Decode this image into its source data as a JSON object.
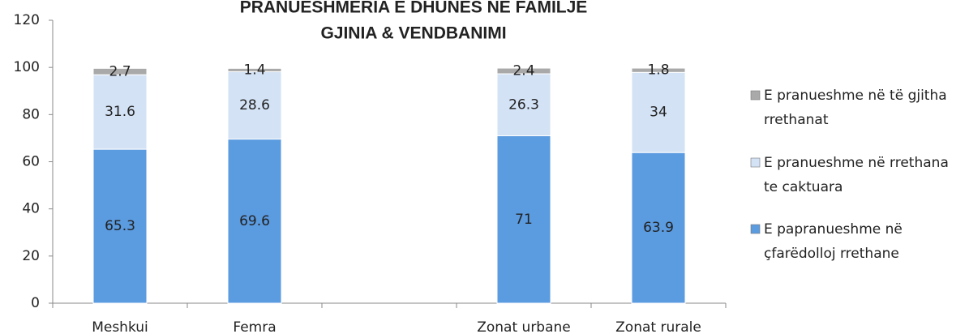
{
  "chart_data": {
    "type": "stacked_bar",
    "title": "PRANUESHMERIA E DHUNES NE FAMILJE",
    "subtitle": "GJINIA & VENDBANIMI",
    "categories": [
      "Meshkui",
      "Femra",
      null,
      "Zonat urbane",
      "Zonat rurale"
    ],
    "series": [
      {
        "name": "E papranueshme në çfarëdolloj rrethane",
        "color": "#5b9be0",
        "values": [
          65.3,
          69.6,
          null,
          71,
          63.9
        ]
      },
      {
        "name": "E pranueshme në rrethana te caktuara",
        "color": "#d3e2f5",
        "values": [
          31.6,
          28.6,
          null,
          26.3,
          34
        ]
      },
      {
        "name": "E pranueshme në të gjitha rrethanat",
        "color": "#a9a9a9",
        "values": [
          2.7,
          1.4,
          null,
          2.4,
          1.8
        ]
      }
    ],
    "ylim": [
      0,
      120
    ],
    "yticks": [
      0,
      20,
      40,
      60,
      80,
      100,
      120
    ],
    "legend": "right"
  }
}
